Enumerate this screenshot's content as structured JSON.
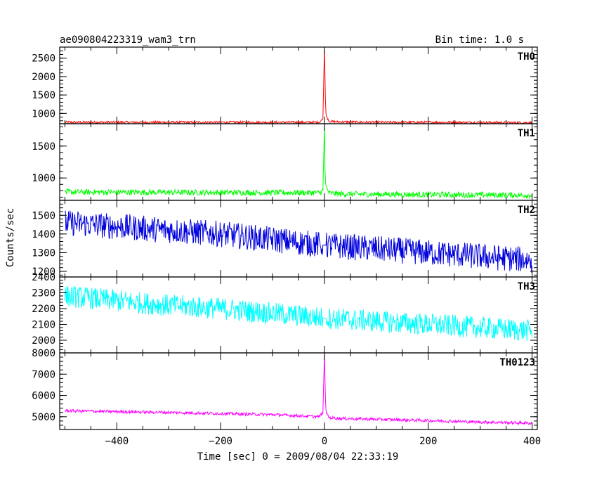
{
  "header": {
    "title": "ae090804223319_wam3_trn",
    "bin_time": "Bin time: 1.0 s"
  },
  "chart_data": {
    "type": "line",
    "title": "ae090804223319_wam3_trn",
    "subtitle": "Bin time: 1.0 s",
    "xlabel": "Time [sec] 0 = 2009/08/04 22:33:19",
    "ylabel": "Counts/sec",
    "xlim": [
      -510,
      410
    ],
    "xticks": [
      -400,
      -200,
      0,
      200,
      400
    ],
    "grid": false,
    "panels": [
      {
        "name": "TH0",
        "color": "#ff0000",
        "ylim": [
          720,
          2800
        ],
        "yticks": [
          1000,
          1500,
          2000,
          2500
        ],
        "series": [
          {
            "x": [
              -500,
              -300,
              -100,
              -10,
              -3,
              0,
              1,
              2,
              3,
              5,
              10,
              30,
              100,
              200,
              300,
              400
            ],
            "y": [
              760,
              760,
              760,
              760,
              850,
              2800,
              2000,
              1300,
              1000,
              880,
              780,
              770,
              760,
              760,
              755,
              750
            ]
          }
        ]
      },
      {
        "name": "TH1",
        "color": "#00ff00",
        "ylim": [
          650,
          1850
        ],
        "yticks": [
          1000,
          1500
        ],
        "series": [
          {
            "x": [
              -500,
              -300,
              -100,
              -10,
              -3,
              0,
              1,
              2,
              3,
              5,
              10,
              30,
              100,
              200,
              300,
              400
            ],
            "y": [
              780,
              775,
              770,
              770,
              800,
              1850,
              1150,
              950,
              880,
              820,
              760,
              750,
              745,
              740,
              735,
              730
            ]
          }
        ]
      },
      {
        "name": "TH2",
        "color": "#0000dd",
        "ylim": [
          1170,
          1580
        ],
        "yticks": [
          1200,
          1300,
          1400,
          1500
        ],
        "series": [
          {
            "x": [
              -500,
              -400,
              -300,
              -200,
              -100,
              0,
              100,
              200,
              300,
              400
            ],
            "y": [
              1460,
              1440,
              1420,
              1400,
              1370,
              1340,
              1320,
              1300,
              1280,
              1260
            ]
          }
        ]
      },
      {
        "name": "TH3",
        "color": "#00ffff",
        "ylim": [
          1920,
          2400
        ],
        "yticks": [
          2000,
          2100,
          2200,
          2300,
          2400
        ],
        "series": [
          {
            "x": [
              -500,
              -400,
              -300,
              -200,
              -100,
              0,
              100,
              200,
              300,
              400
            ],
            "y": [
              2280,
              2250,
              2220,
              2200,
              2170,
              2140,
              2120,
              2100,
              2080,
              2060
            ]
          }
        ]
      },
      {
        "name": "TH0123",
        "color": "#ff00ff",
        "ylim": [
          4400,
          8000
        ],
        "yticks": [
          5000,
          6000,
          7000,
          8000
        ],
        "series": [
          {
            "x": [
              -500,
              -300,
              -100,
              -10,
              -3,
              0,
              1,
              2,
              3,
              5,
              10,
              30,
              100,
              200,
              300,
              400
            ],
            "y": [
              5280,
              5200,
              5100,
              5000,
              5200,
              8000,
              6800,
              5800,
              5300,
              5100,
              4950,
              4920,
              4880,
              4820,
              4750,
              4700
            ]
          }
        ]
      }
    ]
  }
}
